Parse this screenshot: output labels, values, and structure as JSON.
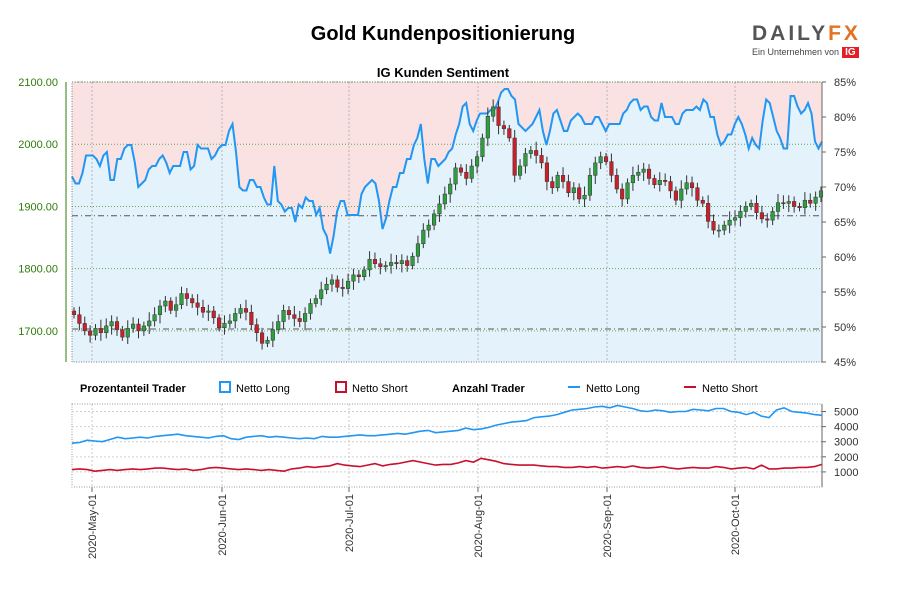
{
  "title": "Gold Kundenpositionierung",
  "logo": {
    "word_part1": "DAILY",
    "word_part2": "FX",
    "subtitle": "Ein Unternehmen von",
    "badge": "IG"
  },
  "colors": {
    "long": "#2196f3",
    "short": "#c8102e",
    "price_axis": "#2e7d0a",
    "bull": "#2e9e3e",
    "bear": "#cc1f2a",
    "long_fill": "#e3f2fb",
    "short_fill": "#fbe2e2"
  },
  "chart_data": [
    {
      "type": "candlestick",
      "title": "IG Kunden Sentiment",
      "price_ylim": [
        1650,
        2100
      ],
      "price_ticks": [
        "2100.00",
        "2000.00",
        "1900.00",
        "1800.00",
        "1700.00"
      ],
      "sentiment_ylim": [
        45,
        85
      ],
      "sentiment_ticks": [
        "85%",
        "80%",
        "75%",
        "70%",
        "65%",
        "60%",
        "55%",
        "50%",
        "45%"
      ],
      "reference_lines": [
        1885,
        1703
      ],
      "price_close": [
        1726,
        1712,
        1700,
        1693,
        1704,
        1697,
        1708,
        1715,
        1702,
        1690,
        1704,
        1711,
        1700,
        1708,
        1716,
        1726,
        1740,
        1748,
        1733,
        1742,
        1760,
        1752,
        1745,
        1738,
        1730,
        1732,
        1721,
        1705,
        1712,
        1716,
        1728,
        1736,
        1730,
        1710,
        1697,
        1680,
        1685,
        1702,
        1715,
        1733,
        1726,
        1720,
        1715,
        1728,
        1744,
        1752,
        1766,
        1775,
        1782,
        1770,
        1768,
        1780,
        1790,
        1787,
        1798,
        1815,
        1808,
        1803,
        1805,
        1810,
        1808,
        1813,
        1805,
        1820,
        1840,
        1862,
        1870,
        1888,
        1904,
        1920,
        1936,
        1962,
        1955,
        1945,
        1965,
        1980,
        2010,
        2045,
        2060,
        2030,
        2025,
        2010,
        1950,
        1965,
        1985,
        1990,
        1982,
        1970,
        1940,
        1930,
        1950,
        1940,
        1922,
        1930,
        1912,
        1918,
        1950,
        1970,
        1980,
        1972,
        1950,
        1928,
        1912,
        1938,
        1950,
        1955,
        1960,
        1945,
        1935,
        1942,
        1940,
        1925,
        1910,
        1928,
        1938,
        1930,
        1910,
        1905,
        1876,
        1862,
        1862,
        1870,
        1878,
        1882,
        1892,
        1900,
        1905,
        1890,
        1880,
        1878,
        1892,
        1906,
        1905,
        1908,
        1900,
        1898,
        1910,
        1905,
        1915,
        1925
      ],
      "netto_long_pct": [
        71.5,
        70.5,
        70.5,
        72,
        74.5,
        74.5,
        74.5,
        74,
        73,
        74.5,
        75,
        71,
        71,
        74,
        74,
        75.5,
        76,
        76,
        73.5,
        70,
        70.5,
        71,
        72.5,
        73,
        73,
        74,
        74.5,
        73.5,
        72,
        73,
        73,
        73,
        75,
        75,
        72.5,
        73,
        76,
        75.5,
        75.5,
        75.5,
        74,
        74.5,
        75.5,
        76,
        76,
        78,
        79,
        75,
        70,
        69.5,
        69.5,
        71,
        71,
        70,
        70,
        68.5,
        67.5,
        67.5,
        73,
        68,
        67.5,
        66.5,
        67,
        67,
        65,
        67.5,
        67,
        68.5,
        68,
        68,
        66,
        67,
        64,
        63,
        60.5,
        63,
        66.5,
        68,
        68,
        66,
        66,
        66,
        66,
        69,
        70,
        70.5,
        71,
        70.5,
        68,
        64,
        65.5,
        68,
        70,
        70,
        72,
        72,
        74,
        74,
        76,
        77,
        79,
        74,
        70.5,
        74,
        74,
        73,
        73.5,
        74,
        75,
        75.5,
        77.5,
        79,
        81.5,
        82,
        79,
        78,
        79.5,
        80.5,
        80.5,
        80.5,
        81,
        81,
        82,
        83.5,
        84,
        84,
        83,
        82.5,
        79,
        78.5,
        78,
        78.5,
        79,
        80,
        81,
        78,
        76,
        78,
        80.5,
        81,
        79.5,
        78,
        78,
        79.5,
        80,
        80.5,
        80,
        79,
        79,
        79,
        80,
        80,
        79,
        78,
        79,
        79,
        79,
        79,
        80.5,
        81,
        82,
        82.5,
        82.5,
        81,
        81.5,
        81.5,
        80,
        79.5,
        79.5,
        82,
        80,
        80,
        80,
        79,
        79,
        80.5,
        81,
        81,
        81,
        81.5,
        81,
        82.5,
        82,
        80,
        80,
        77.5,
        76,
        76.5,
        77.5,
        77.5,
        79,
        80,
        79,
        77.5,
        75.5,
        77,
        76,
        75.5,
        79.5,
        82.5,
        82,
        80,
        78,
        77,
        75.5,
        75.5,
        83,
        83,
        81.5,
        80.5,
        81,
        82,
        80.5,
        76.5,
        75.5,
        76.5
      ]
    },
    {
      "type": "line",
      "title": "",
      "ylim": [
        0,
        5500
      ],
      "y_ticks": [
        "5000",
        "4000",
        "3000",
        "2000",
        "1000"
      ],
      "x_ticks": [
        "2020-May-01",
        "2020-Jun-01",
        "2020-Jul-01",
        "2020-Aug-01",
        "2020-Sep-01",
        "2020-Oct-01"
      ],
      "legend": {
        "pct_title": "Prozentanteil Trader",
        "pct_long": "Netto Long",
        "pct_short": "Netto Short",
        "count_title": "Anzahl Trader",
        "count_long": "Netto Long",
        "count_short": "Netto Short"
      },
      "series": [
        {
          "name": "Netto Long",
          "values": [
            2900,
            2950,
            3100,
            3050,
            3000,
            3150,
            3300,
            3200,
            3250,
            3300,
            3250,
            3350,
            3400,
            3450,
            3500,
            3400,
            3350,
            3300,
            3250,
            3350,
            3400,
            3200,
            3150,
            3300,
            3350,
            3400,
            3300,
            3350,
            3300,
            3250,
            3200,
            3250,
            3200,
            3350,
            3300,
            3300,
            3350,
            3400,
            3450,
            3400,
            3400,
            3450,
            3500,
            3550,
            3500,
            3600,
            3700,
            3750,
            3600,
            3650,
            3700,
            3750,
            3900,
            3800,
            3850,
            3950,
            4100,
            4200,
            4300,
            4350,
            4400,
            4600,
            4650,
            4700,
            4800,
            4950,
            5100,
            5150,
            5200,
            5300,
            5350,
            5250,
            5400,
            5300,
            5200,
            5050,
            5000,
            5100,
            5050,
            4950,
            5000,
            5000,
            5150,
            5100,
            5050,
            5200,
            5200,
            5000,
            4950,
            4800,
            4950,
            4700,
            4600,
            5100,
            5250,
            5000,
            4950,
            4900,
            4800,
            4750
          ]
        },
        {
          "name": "Netto Short",
          "values": [
            1150,
            1200,
            1150,
            1050,
            1100,
            1150,
            1100,
            1150,
            1200,
            1150,
            1200,
            1250,
            1250,
            1200,
            1150,
            1200,
            1100,
            1150,
            1250,
            1300,
            1250,
            1200,
            1150,
            1200,
            1150,
            1100,
            1150,
            1100,
            1050,
            1200,
            1250,
            1350,
            1300,
            1350,
            1400,
            1550,
            1450,
            1400,
            1350,
            1450,
            1550,
            1400,
            1500,
            1550,
            1650,
            1750,
            1650,
            1550,
            1450,
            1500,
            1500,
            1600,
            1750,
            1650,
            1900,
            1800,
            1700,
            1550,
            1500,
            1450,
            1450,
            1450,
            1400,
            1350,
            1350,
            1300,
            1300,
            1350,
            1300,
            1350,
            1250,
            1300,
            1350,
            1300,
            1400,
            1300,
            1250,
            1300,
            1350,
            1250,
            1200,
            1250,
            1300,
            1250,
            1250,
            1350,
            1300,
            1200,
            1250,
            1300,
            1200,
            1450,
            1200,
            1200,
            1250,
            1250,
            1300,
            1300,
            1350,
            1500
          ]
        }
      ]
    }
  ]
}
